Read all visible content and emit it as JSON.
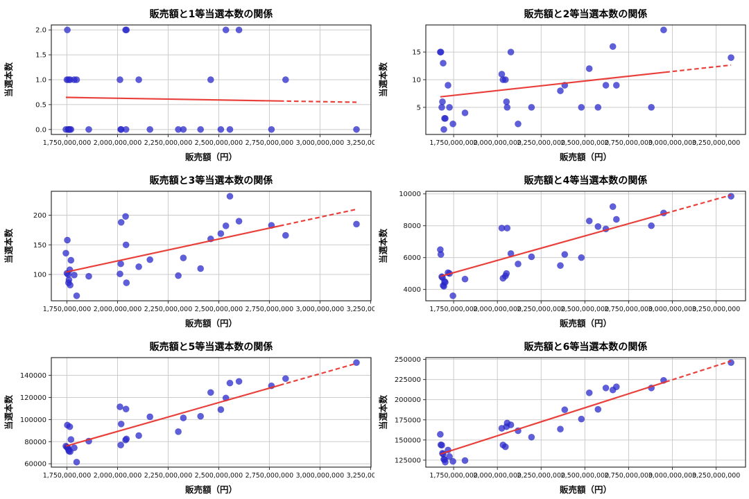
{
  "figure": {
    "kind": "matplotlib-style scatter grid",
    "rows": 3,
    "cols": 2,
    "background": "#ffffff"
  },
  "style": {
    "point_color": "#2b29cf",
    "point_opacity": 0.75,
    "point_radius": 4.6,
    "line_color": "#e8302a",
    "line_width": 2.2,
    "grid_color": "#cbcbcb",
    "spine_color": "#1a1a1a",
    "text_color": "#111111"
  },
  "chart_data": [
    {
      "type": "scatter",
      "title": "販売額と1等当選本数の関係",
      "xlabel": "販売額（円）",
      "ylabel": "当選本数",
      "x_unit_note": "x values in billions of yen",
      "x_ticks": [
        1.75,
        2.0,
        2.25,
        2.5,
        2.75,
        3.0,
        3.25
      ],
      "x_tick_labels": [
        "1,750,000,000",
        "2,000,000,000",
        "2,250,000,000",
        "2,500,000,000",
        "2,750,000,000",
        "3,000,000,000",
        "3,250,000,000"
      ],
      "y_ticks": [
        0.0,
        0.5,
        1.0,
        1.5,
        2.0
      ],
      "y_tick_labels": [
        "0.0",
        "0.5",
        "1.0",
        "1.5",
        "2.0"
      ],
      "xlim": [
        1.673,
        3.252
      ],
      "ylim": [
        -0.1,
        2.1
      ],
      "grid": true,
      "points": {
        "x": [
          1.745,
          1.75,
          1.752,
          1.756,
          1.758,
          1.76,
          1.764,
          1.766,
          1.77,
          1.786,
          1.798,
          1.858,
          2.012,
          2.016,
          2.018,
          2.04,
          2.042,
          2.044,
          2.105,
          2.16,
          2.3,
          2.325,
          2.41,
          2.46,
          2.51,
          2.535,
          2.555,
          2.6,
          2.76,
          2.83,
          3.18
        ],
        "y": [
          0,
          1,
          2,
          0,
          1,
          0,
          0,
          1,
          0,
          1,
          1,
          0,
          1,
          0,
          0,
          2,
          0,
          2,
          1,
          0,
          0,
          0,
          0,
          1,
          0,
          2,
          0,
          2,
          0,
          1,
          0
        ]
      },
      "regression": {
        "x": [
          1.745,
          3.18
        ],
        "y": [
          0.645,
          0.547
        ],
        "dash_from": 2.8
      }
    },
    {
      "type": "scatter",
      "title": "販売額と2等当選本数の関係",
      "xlabel": "販売額（円）",
      "ylabel": "当選本数",
      "x_unit_note": "x values in billions of yen",
      "x_ticks": [
        1.75,
        2.0,
        2.25,
        2.5,
        2.75,
        3.0,
        3.25
      ],
      "x_tick_labels": [
        "1,750,000,000",
        "2,000,000,000",
        "2,250,000,000",
        "2,500,000,000",
        "2,750,000,000",
        "3,000,000,000",
        "3,250,000,000"
      ],
      "y_ticks": [
        5,
        10,
        15
      ],
      "y_tick_labels": [
        "5",
        "10",
        "15"
      ],
      "xlim": [
        1.591,
        3.418
      ],
      "ylim": [
        0.1,
        19.9
      ],
      "grid": true,
      "points": {
        "x": [
          1.674,
          1.677,
          1.682,
          1.686,
          1.69,
          1.694,
          1.698,
          1.702,
          1.718,
          1.726,
          1.746,
          1.815,
          2.025,
          2.032,
          2.046,
          2.052,
          2.056,
          2.077,
          2.118,
          2.195,
          2.36,
          2.385,
          2.48,
          2.525,
          2.575,
          2.62,
          2.66,
          2.68,
          2.88,
          2.95,
          3.335
        ],
        "y": [
          15,
          15,
          5,
          6,
          13,
          1,
          3,
          3,
          9,
          5,
          2,
          4,
          11,
          10,
          10,
          6,
          5,
          15,
          2,
          5,
          8,
          9,
          5,
          12,
          5,
          9,
          16,
          9,
          5,
          19,
          14
        ]
      },
      "regression": {
        "x": [
          1.674,
          3.335
        ],
        "y": [
          6.9,
          12.65
        ],
        "dash_from": 2.96
      }
    },
    {
      "type": "scatter",
      "title": "販売額と3等当選本数の関係",
      "xlabel": "販売額（円）",
      "ylabel": "当選本数",
      "x_unit_note": "x values in billions of yen",
      "x_ticks": [
        1.75,
        2.0,
        2.25,
        2.5,
        2.75,
        3.0,
        3.25
      ],
      "x_tick_labels": [
        "1,750,000,000",
        "2,000,000,000",
        "2,250,000,000",
        "2,500,000,000",
        "2,750,000,000",
        "3,000,000,000",
        "3,250,000,000"
      ],
      "y_ticks": [
        100,
        150,
        200
      ],
      "y_tick_labels": [
        "100",
        "150",
        "200"
      ],
      "xlim": [
        1.673,
        3.252
      ],
      "ylim": [
        55.6,
        240.4
      ],
      "grid": true,
      "points": {
        "x": [
          1.745,
          1.75,
          1.752,
          1.756,
          1.758,
          1.76,
          1.764,
          1.766,
          1.77,
          1.786,
          1.798,
          1.858,
          2.012,
          2.016,
          2.018,
          2.04,
          2.042,
          2.044,
          2.105,
          2.16,
          2.3,
          2.325,
          2.41,
          2.46,
          2.51,
          2.535,
          2.555,
          2.6,
          2.76,
          2.83,
          3.18
        ],
        "y": [
          136,
          102,
          158,
          100,
          86,
          91,
          108,
          82,
          124,
          99,
          64,
          97,
          101,
          118,
          188,
          198,
          150,
          86,
          113,
          125,
          98,
          128,
          110,
          160,
          169,
          182,
          232,
          190,
          183,
          166,
          185
        ]
      },
      "regression": {
        "x": [
          1.745,
          3.18
        ],
        "y": [
          104,
          210
        ],
        "dash_from": 2.8
      }
    },
    {
      "type": "scatter",
      "title": "販売額と4等当選本数の関係",
      "xlabel": "販売額（円）",
      "ylabel": "当選本数",
      "x_unit_note": "x values in billions of yen",
      "x_ticks": [
        1.75,
        2.0,
        2.25,
        2.5,
        2.75,
        3.0,
        3.25
      ],
      "x_tick_labels": [
        "1,750,000,000",
        "2,000,000,000",
        "2,250,000,000",
        "2,500,000,000",
        "2,750,000,000",
        "3,000,000,000",
        "3,250,000,000"
      ],
      "y_ticks": [
        4000,
        6000,
        8000,
        10000
      ],
      "y_tick_labels": [
        "4000",
        "6000",
        "8000",
        "10000"
      ],
      "xlim": [
        1.591,
        3.418
      ],
      "ylim": [
        3287,
        10163
      ],
      "grid": true,
      "points": {
        "x": [
          1.674,
          1.677,
          1.682,
          1.686,
          1.69,
          1.694,
          1.698,
          1.702,
          1.718,
          1.726,
          1.746,
          1.815,
          2.025,
          2.032,
          2.046,
          2.052,
          2.056,
          2.077,
          2.118,
          2.195,
          2.36,
          2.385,
          2.48,
          2.525,
          2.575,
          2.62,
          2.66,
          2.68,
          2.88,
          2.95,
          3.335
        ],
        "y": [
          6500,
          6200,
          4800,
          4750,
          4250,
          4200,
          4500,
          4450,
          5050,
          5000,
          3600,
          4650,
          7850,
          4700,
          4850,
          5000,
          7850,
          6250,
          5600,
          6050,
          5500,
          6200,
          6000,
          8300,
          7950,
          7800,
          9200,
          8400,
          8000,
          8800,
          9850
        ]
      },
      "regression": {
        "x": [
          1.674,
          3.335
        ],
        "y": [
          4820,
          9930
        ],
        "dash_from": 2.96
      }
    },
    {
      "type": "scatter",
      "title": "販売額と5等当選本数の関係",
      "xlabel": "販売額（円）",
      "ylabel": "当選本数",
      "x_unit_note": "x values in billions of yen",
      "x_ticks": [
        1.75,
        2.0,
        2.25,
        2.5,
        2.75,
        3.0,
        3.25
      ],
      "x_tick_labels": [
        "1,750,000,000",
        "2,000,000,000",
        "2,250,000,000",
        "2,500,000,000",
        "2,750,000,000",
        "3,000,000,000",
        "3,250,000,000"
      ],
      "y_ticks": [
        60000,
        80000,
        100000,
        120000,
        140000
      ],
      "y_tick_labels": [
        "60000",
        "80000",
        "100000",
        "120000",
        "140000"
      ],
      "xlim": [
        1.673,
        3.252
      ],
      "ylim": [
        57000,
        156000
      ],
      "grid": true,
      "points": {
        "x": [
          1.745,
          1.75,
          1.752,
          1.756,
          1.758,
          1.76,
          1.764,
          1.766,
          1.77,
          1.786,
          1.798,
          1.858,
          2.012,
          2.016,
          2.018,
          2.04,
          2.042,
          2.044,
          2.105,
          2.16,
          2.3,
          2.325,
          2.41,
          2.46,
          2.51,
          2.535,
          2.555,
          2.6,
          2.76,
          2.83,
          3.18
        ],
        "y": [
          76000,
          75000,
          95000,
          74200,
          72800,
          71500,
          93500,
          71000,
          82000,
          74500,
          61500,
          80500,
          111500,
          77000,
          96000,
          81500,
          109500,
          82500,
          85500,
          102500,
          89000,
          101500,
          103000,
          124500,
          109000,
          119500,
          133000,
          134500,
          130500,
          137000,
          151500
        ]
      },
      "regression": {
        "x": [
          1.745,
          3.18
        ],
        "y": [
          76000,
          150800
        ],
        "dash_from": 2.8
      }
    },
    {
      "type": "scatter",
      "title": "販売額と6等当選本数の関係",
      "xlabel": "販売額（円）",
      "ylabel": "当選本数",
      "x_unit_note": "x values in billions of yen",
      "x_ticks": [
        1.75,
        2.0,
        2.25,
        2.5,
        2.75,
        3.0,
        3.25
      ],
      "x_tick_labels": [
        "1,750,000,000",
        "2,000,000,000",
        "2,250,000,000",
        "2,500,000,000",
        "2,750,000,000",
        "3,000,000,000",
        "3,250,000,000"
      ],
      "y_ticks": [
        125000,
        150000,
        175000,
        200000,
        225000,
        250000
      ],
      "y_tick_labels": [
        "125000",
        "150000",
        "175000",
        "200000",
        "225000",
        "250000"
      ],
      "xlim": [
        1.591,
        3.418
      ],
      "ylim": [
        116325,
        252175
      ],
      "grid": true,
      "points": {
        "x": [
          1.674,
          1.677,
          1.682,
          1.686,
          1.69,
          1.694,
          1.698,
          1.702,
          1.718,
          1.726,
          1.746,
          1.815,
          2.025,
          2.032,
          2.046,
          2.052,
          2.056,
          2.077,
          2.118,
          2.195,
          2.36,
          2.385,
          2.48,
          2.525,
          2.575,
          2.62,
          2.66,
          2.68,
          2.88,
          2.95,
          3.335
        ],
        "y": [
          157000,
          144000,
          143500,
          133500,
          132500,
          126000,
          125500,
          122500,
          137500,
          129500,
          123500,
          124500,
          164500,
          143800,
          141500,
          166500,
          171000,
          168800,
          161500,
          153500,
          163500,
          187500,
          176000,
          208500,
          188000,
          214500,
          212000,
          216000,
          214500,
          224000,
          246000
        ]
      },
      "regression": {
        "x": [
          1.674,
          3.335
        ],
        "y": [
          132500,
          248000
        ],
        "dash_from": 2.96
      }
    }
  ]
}
